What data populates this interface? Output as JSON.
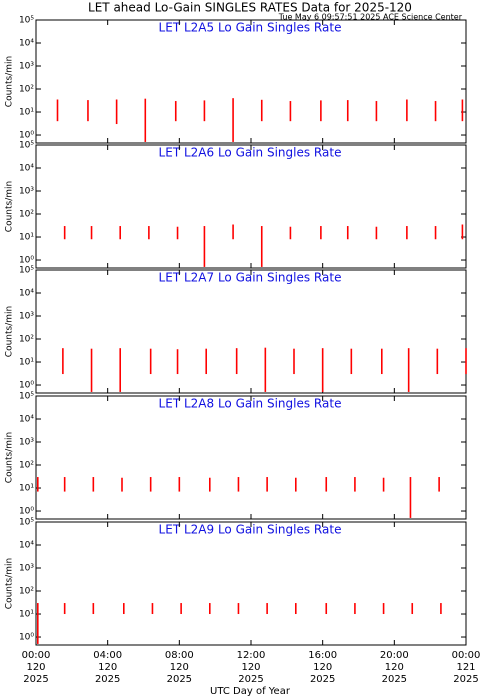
{
  "figure": {
    "title": "LET ahead Lo-Gain SINGLES RATES Data for 2025-120",
    "subtitle": "Tue May  6 09:57:51 2025 ACE Science Center",
    "x_label": "UTC Day of Year",
    "xlim": [
      0,
      24
    ],
    "xticks": [
      {
        "value": 0,
        "label": "00:00"
      },
      {
        "value": 4,
        "label": "04:00"
      },
      {
        "value": 8,
        "label": "08:00"
      },
      {
        "value": 12,
        "label": "12:00"
      },
      {
        "value": 16,
        "label": "16:00"
      },
      {
        "value": 20,
        "label": "20:00"
      },
      {
        "value": 24,
        "label": "00:00"
      }
    ],
    "xtick_days": [
      "120",
      "120",
      "120",
      "120",
      "120",
      "120",
      "121"
    ],
    "xtick_years": [
      "2025",
      "2025",
      "2025",
      "2025",
      "2025",
      "2025",
      "2025"
    ]
  },
  "chart_data": [
    {
      "type": "spike",
      "title": "LET L2A5 Lo Gain Singles Rate",
      "y_label": "Counts/min",
      "log_y": true,
      "color": "#ff0000",
      "ylim": [
        0.45,
        100000
      ],
      "yticks": [
        {
          "value": 1,
          "label": "10⁰"
        },
        {
          "value": 10,
          "label": "10¹"
        },
        {
          "value": 100,
          "label": "10²"
        },
        {
          "value": 1000,
          "label": "10³"
        },
        {
          "value": 10000,
          "label": "10⁴"
        },
        {
          "value": 100000,
          "label": "10⁵"
        }
      ],
      "x": [
        1.2,
        2.9,
        4.5,
        6.1,
        7.8,
        9.4,
        11.0,
        12.6,
        14.2,
        15.9,
        17.4,
        19.0,
        20.7,
        22.3,
        23.8
      ],
      "high": [
        35,
        33,
        35,
        38,
        30,
        32,
        40,
        34,
        30,
        32,
        33,
        30,
        35,
        30,
        35
      ],
      "low": [
        4,
        4,
        3,
        0.5,
        4,
        4,
        0.5,
        4,
        4,
        4,
        4,
        4,
        4,
        4,
        4
      ]
    },
    {
      "type": "spike",
      "title": "LET L2A6 Lo Gain Singles Rate",
      "y_label": "Counts/min",
      "log_y": true,
      "color": "#ff0000",
      "ylim": [
        0.45,
        100000
      ],
      "yticks": [
        {
          "value": 1,
          "label": "10⁰"
        },
        {
          "value": 10,
          "label": "10¹"
        },
        {
          "value": 100,
          "label": "10²"
        },
        {
          "value": 1000,
          "label": "10³"
        },
        {
          "value": 10000,
          "label": "10⁴"
        },
        {
          "value": 100000,
          "label": "10⁵"
        }
      ],
      "x": [
        1.6,
        3.1,
        4.7,
        6.3,
        7.9,
        9.4,
        11.0,
        12.6,
        14.2,
        15.9,
        17.4,
        19.0,
        20.7,
        22.3,
        23.8
      ],
      "high": [
        30,
        30,
        30,
        30,
        28,
        30,
        35,
        30,
        28,
        30,
        30,
        28,
        30,
        30,
        35
      ],
      "low": [
        8,
        8,
        8,
        8,
        8,
        0.5,
        8,
        0.5,
        8,
        8,
        8,
        8,
        8,
        8,
        8
      ]
    },
    {
      "type": "spike",
      "title": "LET L2A7 Lo Gain Singles Rate",
      "y_label": "Counts/min",
      "log_y": true,
      "color": "#ff0000",
      "ylim": [
        0.45,
        100000
      ],
      "yticks": [
        {
          "value": 1,
          "label": "10⁰"
        },
        {
          "value": 10,
          "label": "10¹"
        },
        {
          "value": 100,
          "label": "10²"
        },
        {
          "value": 1000,
          "label": "10³"
        },
        {
          "value": 10000,
          "label": "10⁴"
        },
        {
          "value": 100000,
          "label": "10⁵"
        }
      ],
      "x": [
        1.5,
        3.1,
        4.7,
        6.4,
        7.9,
        9.5,
        11.2,
        12.8,
        14.4,
        16.0,
        17.6,
        19.3,
        20.8,
        22.4,
        24.0
      ],
      "high": [
        40,
        38,
        40,
        38,
        36,
        38,
        40,
        42,
        38,
        40,
        38,
        38,
        40,
        38,
        40
      ],
      "low": [
        3,
        0.5,
        0.5,
        3,
        3,
        3,
        3,
        0.5,
        3,
        0.5,
        3,
        3,
        0.5,
        3,
        3
      ]
    },
    {
      "type": "spike",
      "title": "LET L2A8 Lo Gain Singles Rate",
      "y_label": "Counts/min",
      "log_y": true,
      "color": "#ff0000",
      "ylim": [
        0.45,
        100000
      ],
      "yticks": [
        {
          "value": 1,
          "label": "10⁰"
        },
        {
          "value": 10,
          "label": "10¹"
        },
        {
          "value": 100,
          "label": "10²"
        },
        {
          "value": 1000,
          "label": "10³"
        },
        {
          "value": 10000,
          "label": "10⁴"
        },
        {
          "value": 100000,
          "label": "10⁵"
        }
      ],
      "x": [
        0.1,
        1.6,
        3.2,
        4.8,
        6.4,
        8.0,
        9.7,
        11.3,
        12.9,
        14.5,
        16.2,
        17.8,
        19.4,
        20.9,
        22.5
      ],
      "high": [
        30,
        30,
        30,
        28,
        30,
        30,
        28,
        30,
        30,
        28,
        30,
        30,
        28,
        30,
        30
      ],
      "low": [
        7,
        7,
        7,
        7,
        7,
        7,
        7,
        7,
        7,
        7,
        7,
        7,
        7,
        0.5,
        7
      ]
    },
    {
      "type": "spike",
      "title": "LET L2A9 Lo Gain Singles Rate",
      "y_label": "Counts/min",
      "log_y": true,
      "color": "#ff0000",
      "ylim": [
        0.45,
        100000
      ],
      "yticks": [
        {
          "value": 1,
          "label": "10⁰"
        },
        {
          "value": 10,
          "label": "10¹"
        },
        {
          "value": 100,
          "label": "10²"
        },
        {
          "value": 1000,
          "label": "10³"
        },
        {
          "value": 10000,
          "label": "10⁴"
        },
        {
          "value": 100000,
          "label": "10⁵"
        }
      ],
      "x": [
        0.1,
        1.6,
        3.2,
        4.9,
        6.5,
        8.1,
        9.7,
        11.3,
        12.9,
        14.5,
        16.2,
        17.8,
        19.4,
        21.0,
        22.6
      ],
      "high": [
        30,
        30,
        30,
        30,
        30,
        30,
        30,
        30,
        30,
        30,
        30,
        30,
        30,
        30,
        30
      ],
      "low": [
        0.5,
        10,
        10,
        10,
        10,
        10,
        10,
        10,
        10,
        10,
        10,
        10,
        10,
        10,
        10
      ]
    }
  ]
}
